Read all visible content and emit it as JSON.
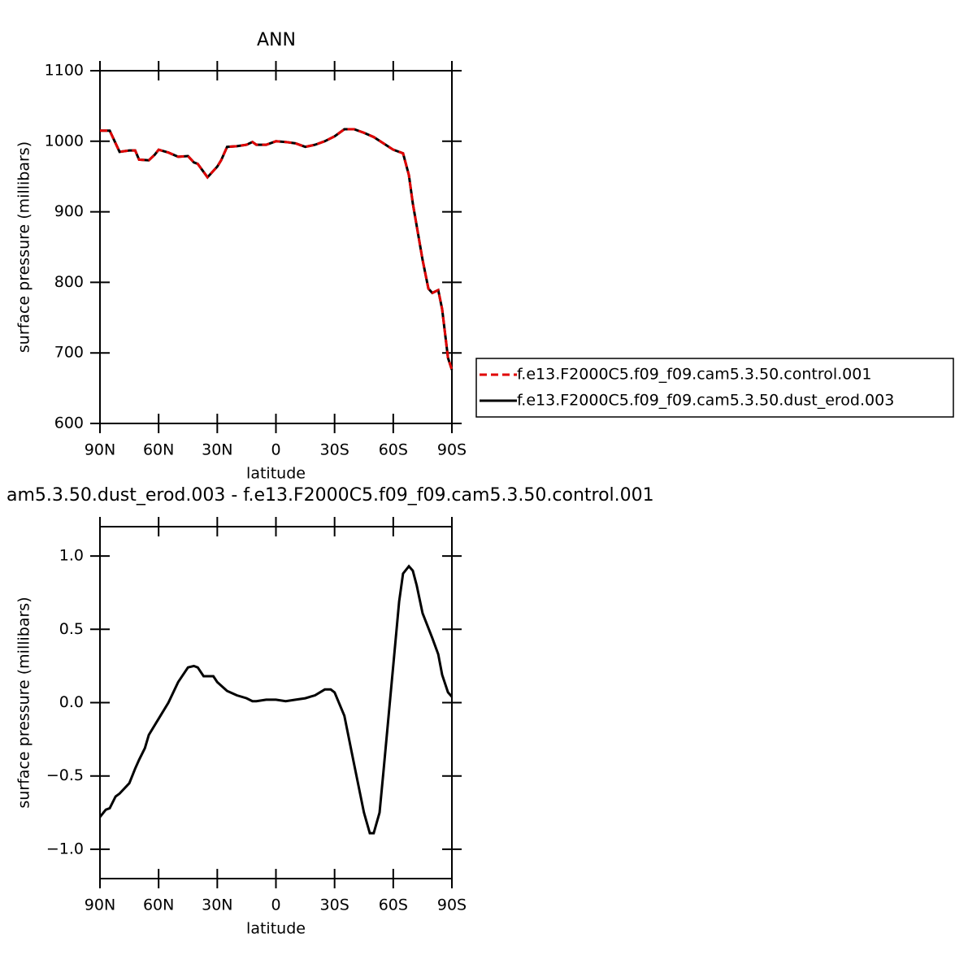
{
  "chart_data": [
    {
      "type": "line",
      "title": "ANN",
      "xlabel": "latitude",
      "ylabel": "surface pressure (millibars)",
      "xlim": [
        90,
        -90
      ],
      "ylim": [
        600,
        1100
      ],
      "xticks": [
        {
          "value": 90,
          "label": "90N"
        },
        {
          "value": 60,
          "label": "60N"
        },
        {
          "value": 30,
          "label": "30N"
        },
        0,
        {
          "value": -30,
          "label": "30S"
        },
        {
          "value": -60,
          "label": "60S"
        },
        {
          "value": -90,
          "label": "90S"
        }
      ],
      "yticks": [
        600,
        700,
        800,
        900,
        1000,
        1100
      ],
      "x": [
        90,
        85,
        80,
        75,
        72,
        70,
        65,
        62,
        60,
        55,
        50,
        45,
        42,
        40,
        35,
        30,
        28,
        25,
        20,
        15,
        12,
        10,
        5,
        0,
        -5,
        -10,
        -15,
        -20,
        -25,
        -30,
        -35,
        -40,
        -45,
        -50,
        -55,
        -60,
        -65,
        -68,
        -70,
        -75,
        -78,
        -80,
        -83,
        -85,
        -88,
        -90
      ],
      "series": [
        {
          "name": "f.e13.F2000C5.f09_f09.cam5.3.50.control.001",
          "color": "#e00000",
          "dashed": true,
          "values": [
            1015,
            1015,
            985,
            987,
            987,
            974,
            973,
            981,
            988,
            984,
            978,
            979,
            970,
            968,
            949,
            964,
            973,
            992,
            993,
            995,
            999,
            995,
            995,
            1000,
            999,
            997,
            992,
            995,
            1000,
            1007,
            1017,
            1017,
            1012,
            1006,
            997,
            988,
            983,
            952,
            912,
            832,
            791,
            785,
            789,
            762,
            693,
            676
          ]
        },
        {
          "name": "f.e13.F2000C5.f09_f09.cam5.3.50.dust_erod.003",
          "color": "#000000",
          "dashed": false,
          "values": [
            1015,
            1015,
            985,
            987,
            987,
            974,
            973,
            981,
            988,
            984,
            978,
            979,
            970,
            968,
            949,
            964,
            973,
            992,
            993,
            995,
            999,
            995,
            995,
            1000,
            999,
            997,
            992,
            995,
            1000,
            1007,
            1017,
            1017,
            1012,
            1006,
            997,
            988,
            983,
            952,
            912,
            832,
            791,
            785,
            789,
            762,
            693,
            676
          ]
        }
      ]
    },
    {
      "type": "line",
      "title": "am5.3.50.dust_erod.003 - f.e13.F2000C5.f09_f09.cam5.3.50.control.001",
      "xlabel": "latitude",
      "ylabel": "surface pressure (millibars)",
      "xlim": [
        90,
        -90
      ],
      "ylim": [
        -1.2,
        1.2
      ],
      "xticks": [
        {
          "value": 90,
          "label": "90N"
        },
        {
          "value": 60,
          "label": "60N"
        },
        {
          "value": 30,
          "label": "30N"
        },
        0,
        {
          "value": -30,
          "label": "30S"
        },
        {
          "value": -60,
          "label": "60S"
        },
        {
          "value": -90,
          "label": "90S"
        }
      ],
      "yticks": [
        {
          "value": -1,
          "label": "−1.0"
        },
        {
          "value": -0.5,
          "label": "−0.5"
        },
        {
          "value": 0,
          "label": "0.0"
        },
        {
          "value": 0.5,
          "label": "0.5"
        },
        {
          "value": 1,
          "label": "1.0"
        }
      ],
      "color": "#000000",
      "x": [
        90,
        87,
        85,
        82,
        80,
        75,
        72,
        70,
        67,
        65,
        60,
        55,
        50,
        45,
        42,
        40,
        37,
        35,
        32,
        30,
        25,
        20,
        15,
        12,
        10,
        5,
        0,
        -5,
        -10,
        -15,
        -20,
        -25,
        -28,
        -30,
        -35,
        -40,
        -45,
        -48,
        -50,
        -53,
        -55,
        -60,
        -63,
        -65,
        -68,
        -70,
        -72,
        -75,
        -80,
        -83,
        -85,
        -88,
        -90
      ],
      "values": [
        -0.78,
        -0.73,
        -0.72,
        -0.64,
        -0.62,
        -0.55,
        -0.45,
        -0.39,
        -0.31,
        -0.22,
        -0.11,
        0.0,
        0.14,
        0.24,
        0.25,
        0.24,
        0.18,
        0.18,
        0.18,
        0.14,
        0.08,
        0.05,
        0.03,
        0.01,
        0.01,
        0.02,
        0.02,
        0.01,
        0.02,
        0.03,
        0.05,
        0.09,
        0.09,
        0.07,
        -0.09,
        -0.42,
        -0.75,
        -0.89,
        -0.89,
        -0.75,
        -0.47,
        0.25,
        0.69,
        0.88,
        0.93,
        0.9,
        0.8,
        0.61,
        0.44,
        0.33,
        0.19,
        0.07,
        0.04
      ]
    }
  ]
}
